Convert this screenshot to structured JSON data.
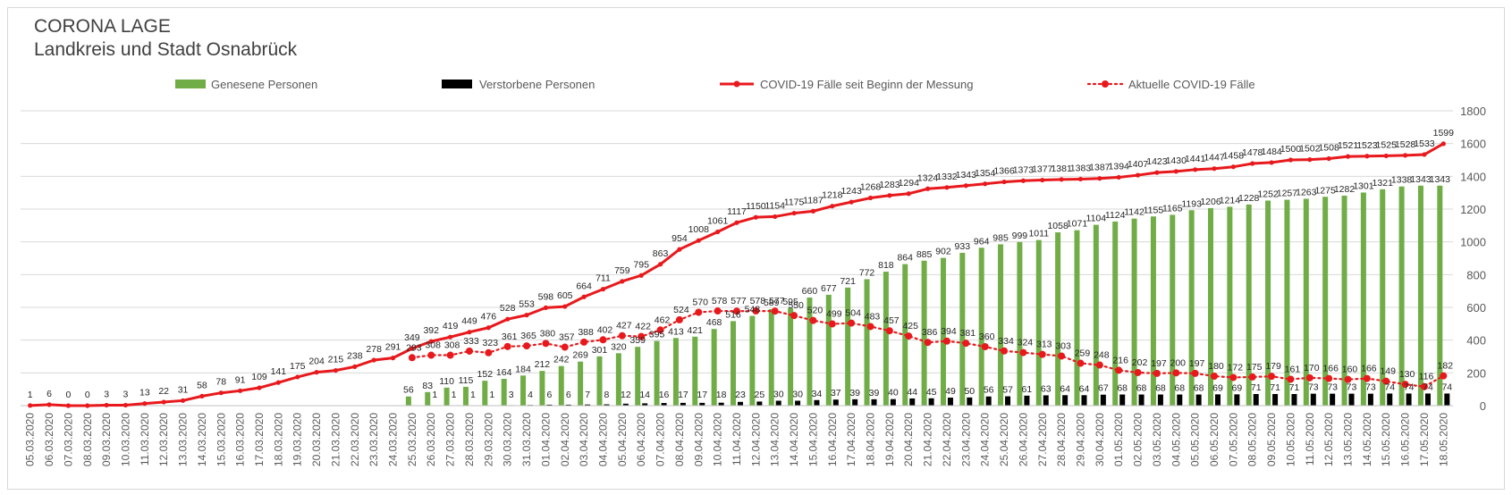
{
  "title": "CORONA LAGE",
  "subtitle": "Landkreis und Stadt Osnabrück",
  "colors": {
    "recovered": "#70ad47",
    "deceased": "#000000",
    "total": "#e8191c",
    "active": "#e8191c",
    "grid": "#d9d9d9",
    "axis_text": "#595959"
  },
  "chart_data": {
    "type": "bar",
    "title": "CORONA LAGE",
    "subtitle": "Landkreis und Stadt Osnabrück",
    "legend_position": "top",
    "grid": true,
    "y_axis_position": "right",
    "ylim": [
      0,
      1800
    ],
    "yticks": [
      0,
      200,
      400,
      600,
      800,
      1000,
      1200,
      1400,
      1600,
      1800
    ],
    "categories": [
      "05.03.2020",
      "06.03.2020",
      "07.03.2020",
      "08.03.2020",
      "09.03.2020",
      "10.03.2020",
      "11.03.2020",
      "12.03.2020",
      "13.03.2020",
      "14.03.2020",
      "15.03.2020",
      "16.03.2020",
      "17.03.2020",
      "18.03.2020",
      "19.03.2020",
      "20.03.2020",
      "21.03.2020",
      "22.03.2020",
      "23.03.2020",
      "24.03.2020",
      "25.03.2020",
      "26.03.2020",
      "27.03.2020",
      "28.03.2020",
      "29.03.2020",
      "30.03.2020",
      "31.03.2020",
      "01.04.2020",
      "02.04.2020",
      "03.04.2020",
      "04.04.2020",
      "05.04.2020",
      "06.04.2020",
      "07.04.2020",
      "08.04.2020",
      "09.04.2020",
      "10.04.2020",
      "11.04.2020",
      "12.04.2020",
      "13.04.2020",
      "14.04.2020",
      "15.04.2020",
      "16.04.2020",
      "17.04.2020",
      "18.04.2020",
      "19.04.2020",
      "20.04.2020",
      "21.04.2020",
      "22.04.2020",
      "23.04.2020",
      "24.04.2020",
      "25.04.2020",
      "26.04.2020",
      "27.04.2020",
      "28.04.2020",
      "29.04.2020",
      "30.04.2020",
      "01.05.2020",
      "02.05.2020",
      "03.05.2020",
      "04.05.2020",
      "05.05.2020",
      "06.05.2020",
      "07.05.2020",
      "08.05.2020",
      "09.05.2020",
      "10.05.2020",
      "11.05.2020",
      "12.05.2020",
      "13.05.2020",
      "14.05.2020",
      "15.05.2020",
      "16.05.2020",
      "17.05.2020",
      "18.05.2020"
    ],
    "series": [
      {
        "name": "Genesene Personen",
        "kind": "bar",
        "color": "#70ad47",
        "values": [
          null,
          null,
          null,
          null,
          null,
          null,
          null,
          null,
          null,
          null,
          null,
          null,
          null,
          null,
          null,
          null,
          null,
          null,
          null,
          null,
          56,
          83,
          110,
          115,
          152,
          164,
          184,
          212,
          242,
          269,
          301,
          320,
          359,
          395,
          413,
          421,
          468,
          516,
          548,
          589,
          595,
          660,
          677,
          721,
          772,
          818,
          864,
          885,
          902,
          933,
          964,
          985,
          999,
          1011,
          1058,
          1071,
          1104,
          1124,
          1142,
          1155,
          1165,
          1193,
          1206,
          1214,
          1228,
          1252,
          1257,
          1263,
          1275,
          1282,
          1301,
          1321,
          1338,
          1343,
          1343
        ]
      },
      {
        "name": "Verstorbene Personen",
        "kind": "bar",
        "color": "#000000",
        "values": [
          null,
          null,
          null,
          null,
          null,
          null,
          null,
          null,
          null,
          null,
          null,
          null,
          null,
          null,
          null,
          null,
          null,
          null,
          null,
          null,
          null,
          1,
          1,
          1,
          1,
          3,
          4,
          6,
          6,
          7,
          8,
          12,
          14,
          16,
          17,
          17,
          18,
          23,
          25,
          30,
          30,
          34,
          37,
          39,
          39,
          40,
          44,
          45,
          49,
          50,
          56,
          57,
          61,
          63,
          64,
          64,
          67,
          68,
          68,
          68,
          68,
          68,
          69,
          69,
          71,
          71,
          71,
          73,
          73,
          73,
          73,
          74,
          74,
          74,
          74
        ]
      },
      {
        "name": "COVID-19 Fälle seit Beginn der Messung",
        "kind": "line",
        "color": "#e8191c",
        "values": [
          1,
          6,
          0,
          0,
          3,
          3,
          13,
          22,
          31,
          58,
          78,
          91,
          109,
          141,
          175,
          204,
          215,
          238,
          278,
          291,
          349,
          392,
          419,
          449,
          476,
          528,
          553,
          598,
          605,
          664,
          711,
          759,
          795,
          863,
          954,
          1008,
          1061,
          1117,
          1150,
          1154,
          1175,
          1187,
          1218,
          1243,
          1268,
          1283,
          1294,
          1324,
          1332,
          1343,
          1354,
          1366,
          1373,
          1377,
          1381,
          1383,
          1387,
          1394,
          1407,
          1423,
          1430,
          1441,
          1447,
          1458,
          1478,
          1484,
          1500,
          1502,
          1508,
          1521,
          1523,
          1525,
          1528,
          1533,
          1599
        ]
      },
      {
        "name": "Aktuelle COVID-19 Fälle",
        "kind": "dotted-line",
        "color": "#e8191c",
        "values": [
          null,
          null,
          null,
          null,
          null,
          null,
          null,
          null,
          null,
          null,
          null,
          null,
          null,
          null,
          null,
          null,
          null,
          null,
          null,
          null,
          293,
          308,
          308,
          333,
          323,
          361,
          365,
          380,
          357,
          388,
          402,
          427,
          422,
          462,
          524,
          570,
          578,
          577,
          578,
          577,
          550,
          520,
          499,
          504,
          483,
          457,
          425,
          386,
          394,
          381,
          360,
          334,
          324,
          313,
          303,
          259,
          248,
          216,
          202,
          197,
          200,
          197,
          180,
          172,
          175,
          179,
          161,
          170,
          166,
          160,
          166,
          149,
          130,
          116,
          182
        ]
      }
    ],
    "data_labels": {
      "total": [
        "1",
        "6",
        "0",
        "0",
        "3",
        "3",
        "13",
        "22",
        "31",
        "58",
        "78",
        "91",
        "109",
        "141",
        "175",
        "204",
        "215",
        "238",
        "278",
        "291",
        "349",
        "392",
        "419",
        "449",
        "476",
        "528",
        "553",
        "598",
        "605",
        "664",
        "711",
        "759",
        "795",
        "863",
        "954",
        "1008",
        "1061",
        "1117",
        "1150",
        "1154",
        "1175",
        "1187",
        "1218",
        "1243",
        "1268",
        "1283",
        "1294",
        "1324",
        "1332",
        "1343",
        "1354",
        "1366",
        "1373",
        "1377",
        "1381",
        "1383",
        "1387",
        "1394",
        "1407",
        "1423",
        "1430",
        "1441",
        "1447",
        "1458",
        "1478",
        "1484",
        "1500",
        "1502",
        "1508",
        "1521",
        "1523",
        "1525",
        "1528",
        "1533",
        "1599"
      ],
      "recovered": [
        "",
        "",
        "",
        "",
        "",
        "",
        "",
        "",
        "",
        "",
        "",
        "",
        "",
        "",
        "",
        "",
        "",
        "",
        "",
        "",
        "56",
        "83",
        "110",
        "115",
        "152",
        "164",
        "184",
        "212",
        "242",
        "269",
        "301",
        "320",
        "359",
        "395",
        "413",
        "421",
        "468",
        "516",
        "548",
        "589",
        "595",
        "660",
        "677",
        "721",
        "772",
        "818",
        "864",
        "885",
        "902",
        "933",
        "964",
        "985",
        "999",
        "1011",
        "1058",
        "1071",
        "1104",
        "1124",
        "1142",
        "1155",
        "1165",
        "1193",
        "1206",
        "1214",
        "1228",
        "1252",
        "1257",
        "1263",
        "1275",
        "1282",
        "1301",
        "1321",
        "1338",
        "1343",
        "1343"
      ],
      "deceased": [
        "",
        "",
        "",
        "",
        "",
        "",
        "",
        "",
        "",
        "",
        "",
        "",
        "",
        "",
        "",
        "",
        "",
        "",
        "",
        "",
        "",
        "1",
        "1",
        "1",
        "1",
        "3",
        "4",
        "6",
        "6",
        "7",
        "8",
        "12",
        "14",
        "16",
        "17",
        "17",
        "18",
        "23",
        "25",
        "30",
        "30",
        "34",
        "37",
        "39",
        "39",
        "40",
        "44",
        "45",
        "49",
        "50",
        "56",
        "57",
        "61",
        "63",
        "64",
        "64",
        "67",
        "68",
        "68",
        "68",
        "68",
        "68",
        "69",
        "69",
        "71",
        "71",
        "71",
        "73",
        "73",
        "73",
        "73",
        "74",
        "74",
        "74",
        "74"
      ],
      "active": [
        "",
        "",
        "",
        "",
        "",
        "",
        "",
        "",
        "",
        "",
        "",
        "",
        "",
        "",
        "",
        "",
        "",
        "",
        "",
        "",
        "293",
        "308",
        "308",
        "333",
        "323",
        "361",
        "365",
        "380",
        "357",
        "388",
        "402",
        "427",
        "422",
        "462",
        "524",
        "570",
        "578",
        "577",
        "578",
        "577",
        "550",
        "520",
        "499",
        "504",
        "483",
        "457",
        "425",
        "386",
        "394",
        "381",
        "360",
        "334",
        "324",
        "313",
        "303",
        "259",
        "248",
        "216",
        "202",
        "197",
        "200",
        "197",
        "180",
        "172",
        "175",
        "179",
        "161",
        "170",
        "166",
        "160",
        "166",
        "149",
        "130",
        "116",
        "182"
      ]
    }
  }
}
